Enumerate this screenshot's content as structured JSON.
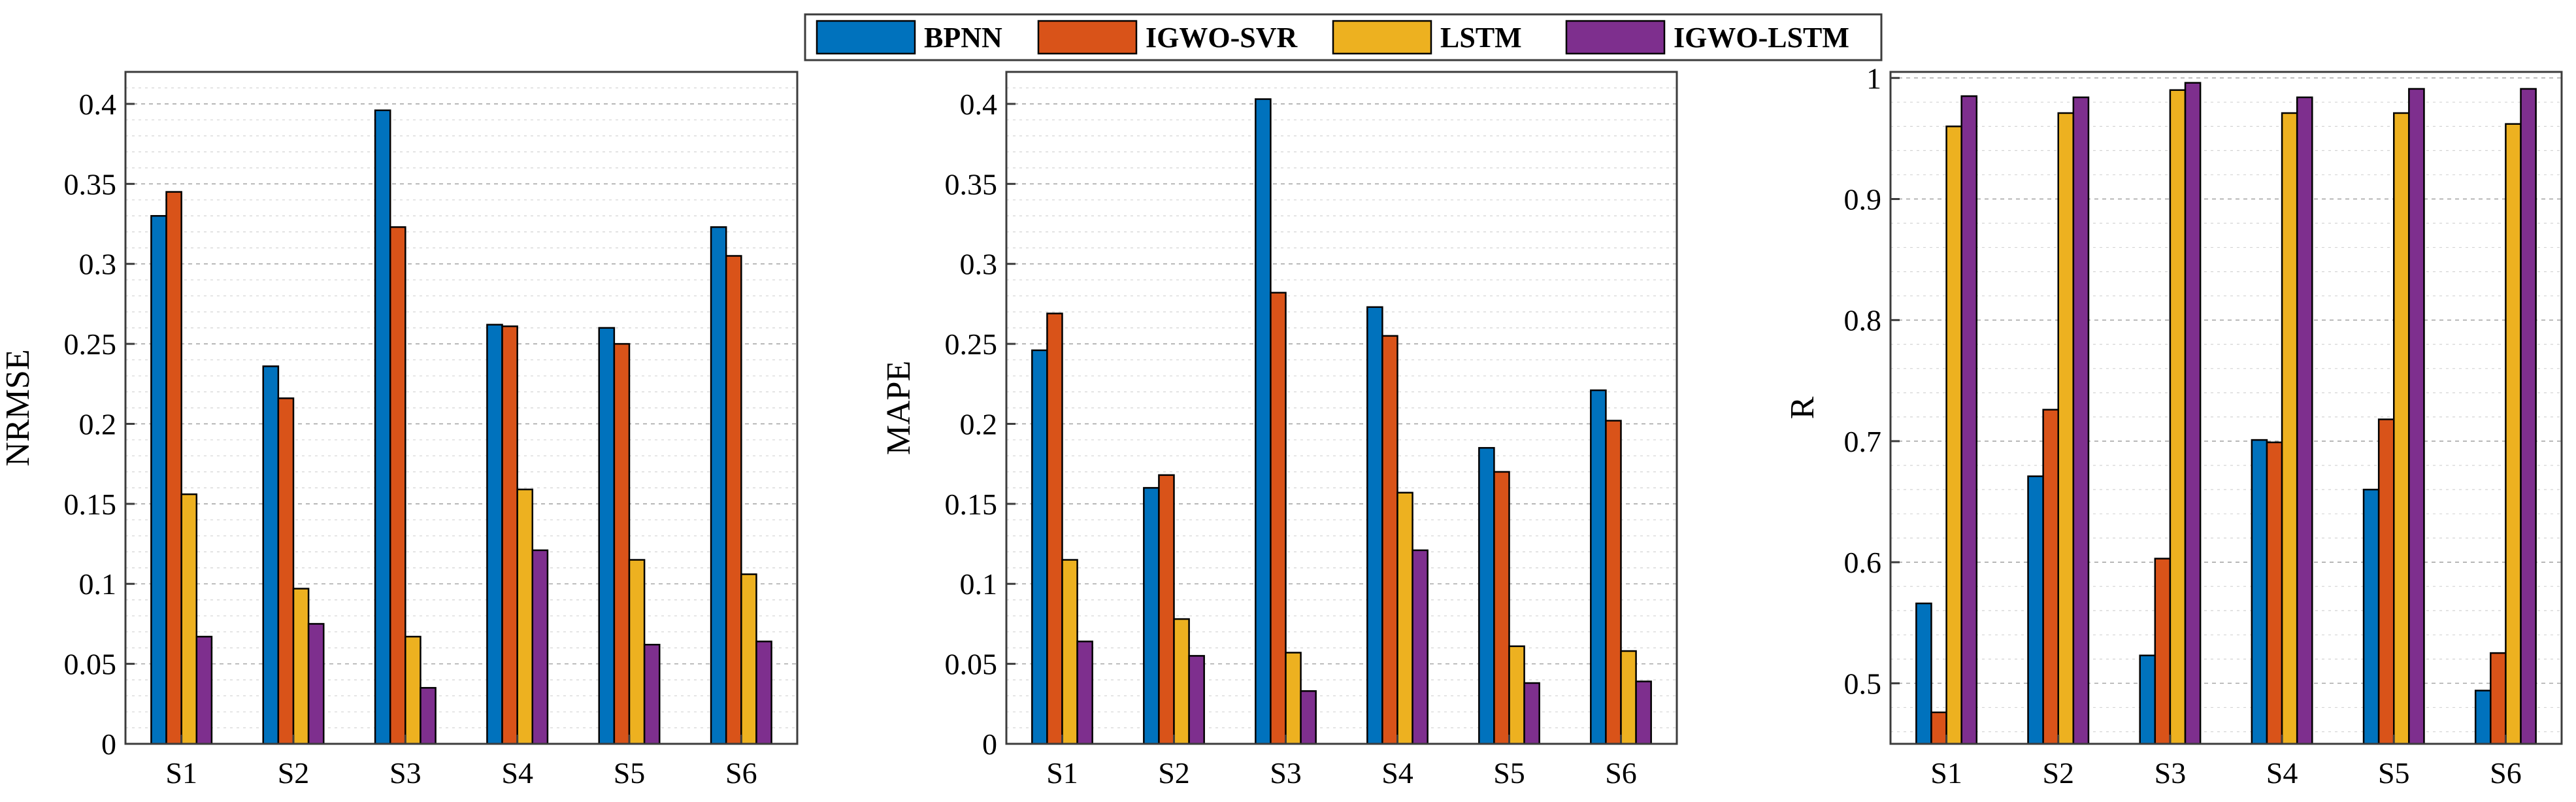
{
  "legend": [
    {
      "name": "BPNN",
      "color": "#0072BD"
    },
    {
      "name": "IGWO-SVR",
      "color": "#D95319"
    },
    {
      "name": "LSTM",
      "color": "#EDB120"
    },
    {
      "name": "IGWO-LSTM",
      "color": "#7E2F8E"
    }
  ],
  "chart_data": [
    {
      "type": "bar",
      "ylabel": "NRMSE",
      "categories": [
        "S1",
        "S2",
        "S3",
        "S4",
        "S5",
        "S6"
      ],
      "ylim": [
        0,
        0.42
      ],
      "yticks": [
        0,
        0.05,
        0.1,
        0.15,
        0.2,
        0.25,
        0.3,
        0.35,
        0.4
      ],
      "ytick_labels": [
        "0",
        "0.05",
        "0.1",
        "0.15",
        "0.2",
        "0.25",
        "0.3",
        "0.35",
        "0.4"
      ],
      "minor_step": 0.01,
      "series": [
        {
          "name": "BPNN",
          "values": [
            0.33,
            0.236,
            0.396,
            0.262,
            0.26,
            0.323
          ]
        },
        {
          "name": "IGWO-SVR",
          "values": [
            0.345,
            0.216,
            0.323,
            0.261,
            0.25,
            0.305
          ]
        },
        {
          "name": "LSTM",
          "values": [
            0.156,
            0.097,
            0.067,
            0.159,
            0.115,
            0.106
          ]
        },
        {
          "name": "IGWO-LSTM",
          "values": [
            0.067,
            0.075,
            0.035,
            0.121,
            0.062,
            0.064
          ]
        }
      ]
    },
    {
      "type": "bar",
      "ylabel": "MAPE",
      "categories": [
        "S1",
        "S2",
        "S3",
        "S4",
        "S5",
        "S6"
      ],
      "ylim": [
        0,
        0.42
      ],
      "yticks": [
        0,
        0.05,
        0.1,
        0.15,
        0.2,
        0.25,
        0.3,
        0.35,
        0.4
      ],
      "ytick_labels": [
        "0",
        "0.05",
        "0.1",
        "0.15",
        "0.2",
        "0.25",
        "0.3",
        "0.35",
        "0.4"
      ],
      "minor_step": 0.01,
      "series": [
        {
          "name": "BPNN",
          "values": [
            0.246,
            0.16,
            0.403,
            0.273,
            0.185,
            0.221
          ]
        },
        {
          "name": "IGWO-SVR",
          "values": [
            0.269,
            0.168,
            0.282,
            0.255,
            0.17,
            0.202
          ]
        },
        {
          "name": "LSTM",
          "values": [
            0.115,
            0.078,
            0.057,
            0.157,
            0.061,
            0.058
          ]
        },
        {
          "name": "IGWO-LSTM",
          "values": [
            0.064,
            0.055,
            0.033,
            0.121,
            0.038,
            0.039
          ]
        }
      ]
    },
    {
      "type": "bar",
      "ylabel": "R",
      "categories": [
        "S1",
        "S2",
        "S3",
        "S4",
        "S5",
        "S6"
      ],
      "ylim": [
        0.45,
        1.005
      ],
      "yticks": [
        0.5,
        0.6,
        0.7,
        0.8,
        0.9,
        1
      ],
      "ytick_labels": [
        "0.5",
        "0.6",
        "0.7",
        "0.8",
        "0.9",
        "1"
      ],
      "minor_step": 0.02,
      "series": [
        {
          "name": "BPNN",
          "values": [
            0.566,
            0.671,
            0.523,
            0.701,
            0.66,
            0.494
          ]
        },
        {
          "name": "IGWO-SVR",
          "values": [
            0.476,
            0.726,
            0.603,
            0.699,
            0.718,
            0.525
          ]
        },
        {
          "name": "LSTM",
          "values": [
            0.96,
            0.971,
            0.99,
            0.971,
            0.971,
            0.962
          ]
        },
        {
          "name": "IGWO-LSTM",
          "values": [
            0.985,
            0.984,
            0.996,
            0.984,
            0.991,
            0.991
          ]
        }
      ]
    }
  ]
}
